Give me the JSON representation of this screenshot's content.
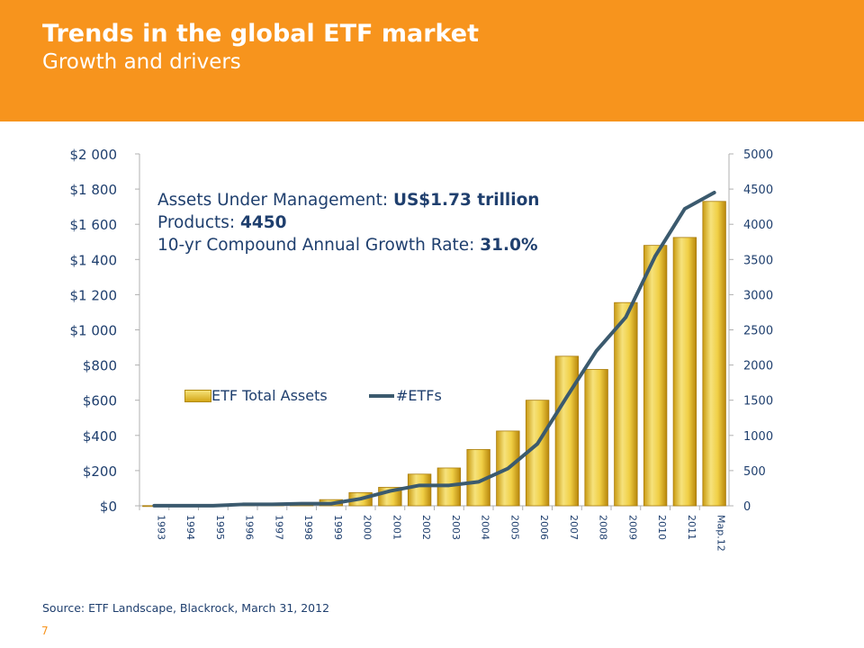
{
  "header": {
    "title": "Trends in the global ETF market",
    "subtitle": "Growth and drivers"
  },
  "info": {
    "line1_label": "Assets Under Management: ",
    "line1_value": "US$1.73 trillion",
    "line2_label": "Products: ",
    "line2_value": "4450",
    "line3_label": "10-yr Compound Annual Growth Rate: ",
    "line3_value": "31.0%"
  },
  "footer": {
    "source": "Source: ETF Landscape, Blackrock, March 31, 2012",
    "page_number": "7"
  },
  "chart_data": {
    "type": "bar",
    "categories": [
      "1993",
      "1994",
      "1995",
      "1996",
      "1997",
      "1998",
      "1999",
      "2000",
      "2001",
      "2002",
      "2003",
      "2004",
      "2005",
      "2006",
      "2007",
      "2008",
      "2009",
      "2010",
      "2011",
      "Мар.12"
    ],
    "series": [
      {
        "name": "ETF Total Assets",
        "type": "bar",
        "axis": "left",
        "color": "#e8c229",
        "values": [
          1,
          1,
          2,
          5,
          7,
          15,
          35,
          75,
          105,
          180,
          215,
          320,
          425,
          600,
          850,
          775,
          1155,
          1480,
          1525,
          1730
        ]
      },
      {
        "name": "#ETFs",
        "type": "line",
        "axis": "right",
        "color": "#3b5a6e",
        "values": [
          1,
          1,
          1,
          20,
          20,
          30,
          30,
          100,
          210,
          290,
          290,
          340,
          530,
          880,
          1550,
          2200,
          2680,
          3550,
          4220,
          4450
        ]
      }
    ],
    "y_left": {
      "range": [
        0,
        2000
      ],
      "ticks": [
        "$0",
        "$200",
        "$400",
        "$600",
        "$800",
        "$1 000",
        "$1 200",
        "$1 400",
        "$1 600",
        "$1 800",
        "$2 000"
      ]
    },
    "y_right": {
      "range": [
        0,
        5000
      ],
      "ticks": [
        "0",
        "500",
        "1000",
        "1500",
        "2000",
        "2500",
        "3000",
        "3500",
        "4000",
        "4500",
        "5000"
      ]
    },
    "legend_position": "center-left",
    "grid": false
  }
}
